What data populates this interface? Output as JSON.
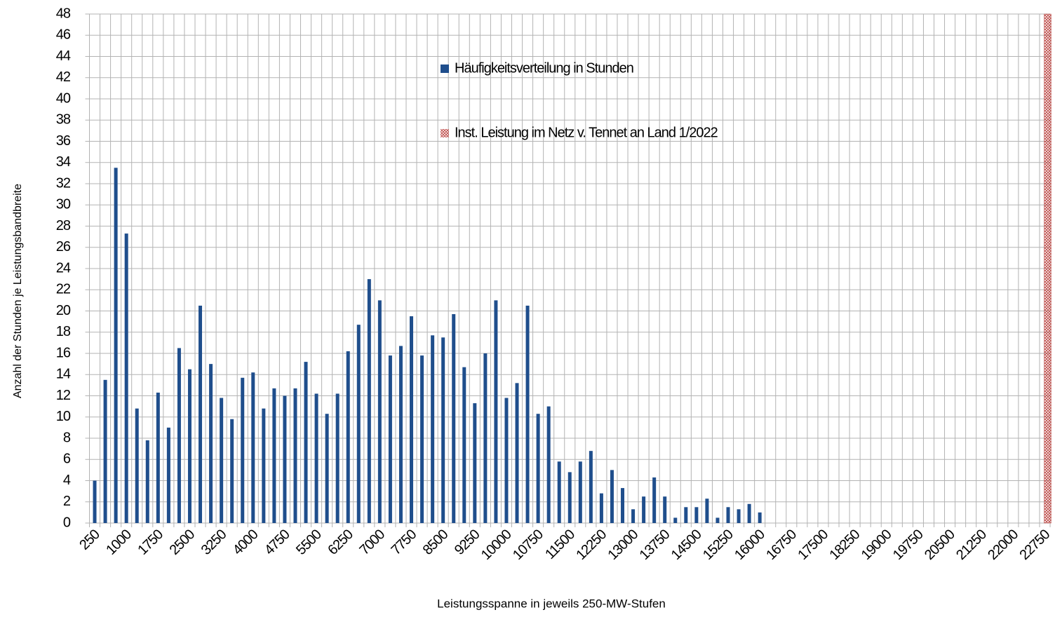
{
  "chart_data": {
    "type": "bar",
    "y_label": "Anzahl der Stunden je Leistungsbandbreite",
    "x_label": "Leistungsspanne in jeweils 250-MW-Stufen",
    "categories": [
      "250",
      null,
      null,
      "1000",
      null,
      null,
      "1750",
      null,
      null,
      "2500",
      null,
      null,
      "3250",
      null,
      null,
      "4000",
      null,
      null,
      "4750",
      null,
      null,
      "5500",
      null,
      null,
      "6250",
      null,
      null,
      "7000",
      null,
      null,
      "7750",
      null,
      null,
      "8500",
      null,
      null,
      "9250",
      null,
      null,
      "10000",
      null,
      null,
      "10750",
      null,
      null,
      "11500",
      null,
      null,
      "12250",
      null,
      null,
      "13000",
      null,
      null,
      "13750",
      null,
      null,
      "14500",
      null,
      null,
      "15250",
      null,
      null,
      "16000",
      null,
      null,
      "16750",
      null,
      null,
      "17500",
      null,
      null,
      "18250",
      null,
      null,
      "19000",
      null,
      null,
      "19750",
      null,
      null,
      "20500",
      null,
      null,
      "21250",
      null,
      null,
      "22000",
      null,
      null,
      "22750"
    ],
    "series": [
      {
        "name": "Häufigkeitsverteilung in Stunden",
        "color": "#1f4e8c",
        "values": [
          4,
          13.5,
          33.5,
          27.3,
          10.8,
          7.8,
          12.3,
          9,
          16.5,
          14.5,
          20.5,
          15,
          11.8,
          9.8,
          13.7,
          14.2,
          10.8,
          12.7,
          12,
          12.7,
          15.2,
          12.2,
          10.3,
          12.2,
          16.2,
          18.7,
          23,
          21,
          15.8,
          16.7,
          19.5,
          15.8,
          17.7,
          17.5,
          19.7,
          14.7,
          11.3,
          16,
          21,
          11.8,
          13.2,
          20.5,
          10.3,
          11,
          5.8,
          4.8,
          5.8,
          6.8,
          2.8,
          5,
          3.3,
          1.3,
          2.5,
          4.3,
          2.5,
          0.5,
          1.5,
          1.5,
          2.3,
          0.5,
          1.5,
          1.3,
          1.8,
          1,
          null,
          null,
          null,
          null,
          null,
          null,
          null,
          null,
          null,
          null,
          null,
          null,
          null,
          null,
          null,
          null,
          null,
          null,
          null,
          null,
          null,
          null,
          null,
          null,
          null,
          null,
          null
        ]
      },
      {
        "name": "Inst. Leistung im Netz v. Tennet an Land 1/2022",
        "color": "#c0504d",
        "hatched": true,
        "values": [
          null,
          null,
          null,
          null,
          null,
          null,
          null,
          null,
          null,
          null,
          null,
          null,
          null,
          null,
          null,
          null,
          null,
          null,
          null,
          null,
          null,
          null,
          null,
          null,
          null,
          null,
          null,
          null,
          null,
          null,
          null,
          null,
          null,
          null,
          null,
          null,
          null,
          null,
          null,
          null,
          null,
          null,
          null,
          null,
          null,
          null,
          null,
          null,
          null,
          null,
          null,
          null,
          null,
          null,
          null,
          null,
          null,
          null,
          null,
          null,
          null,
          null,
          null,
          null,
          null,
          null,
          null,
          null,
          null,
          null,
          null,
          null,
          null,
          null,
          null,
          null,
          null,
          null,
          null,
          null,
          null,
          null,
          null,
          null,
          null,
          null,
          null,
          null,
          null,
          null,
          48
        ]
      }
    ],
    "ylim": [
      0,
      48
    ],
    "yticks": [
      0,
      2,
      4,
      6,
      8,
      10,
      12,
      14,
      16,
      18,
      20,
      22,
      24,
      26,
      28,
      30,
      32,
      34,
      36,
      38,
      40,
      42,
      44,
      46,
      48
    ],
    "grid": true
  }
}
